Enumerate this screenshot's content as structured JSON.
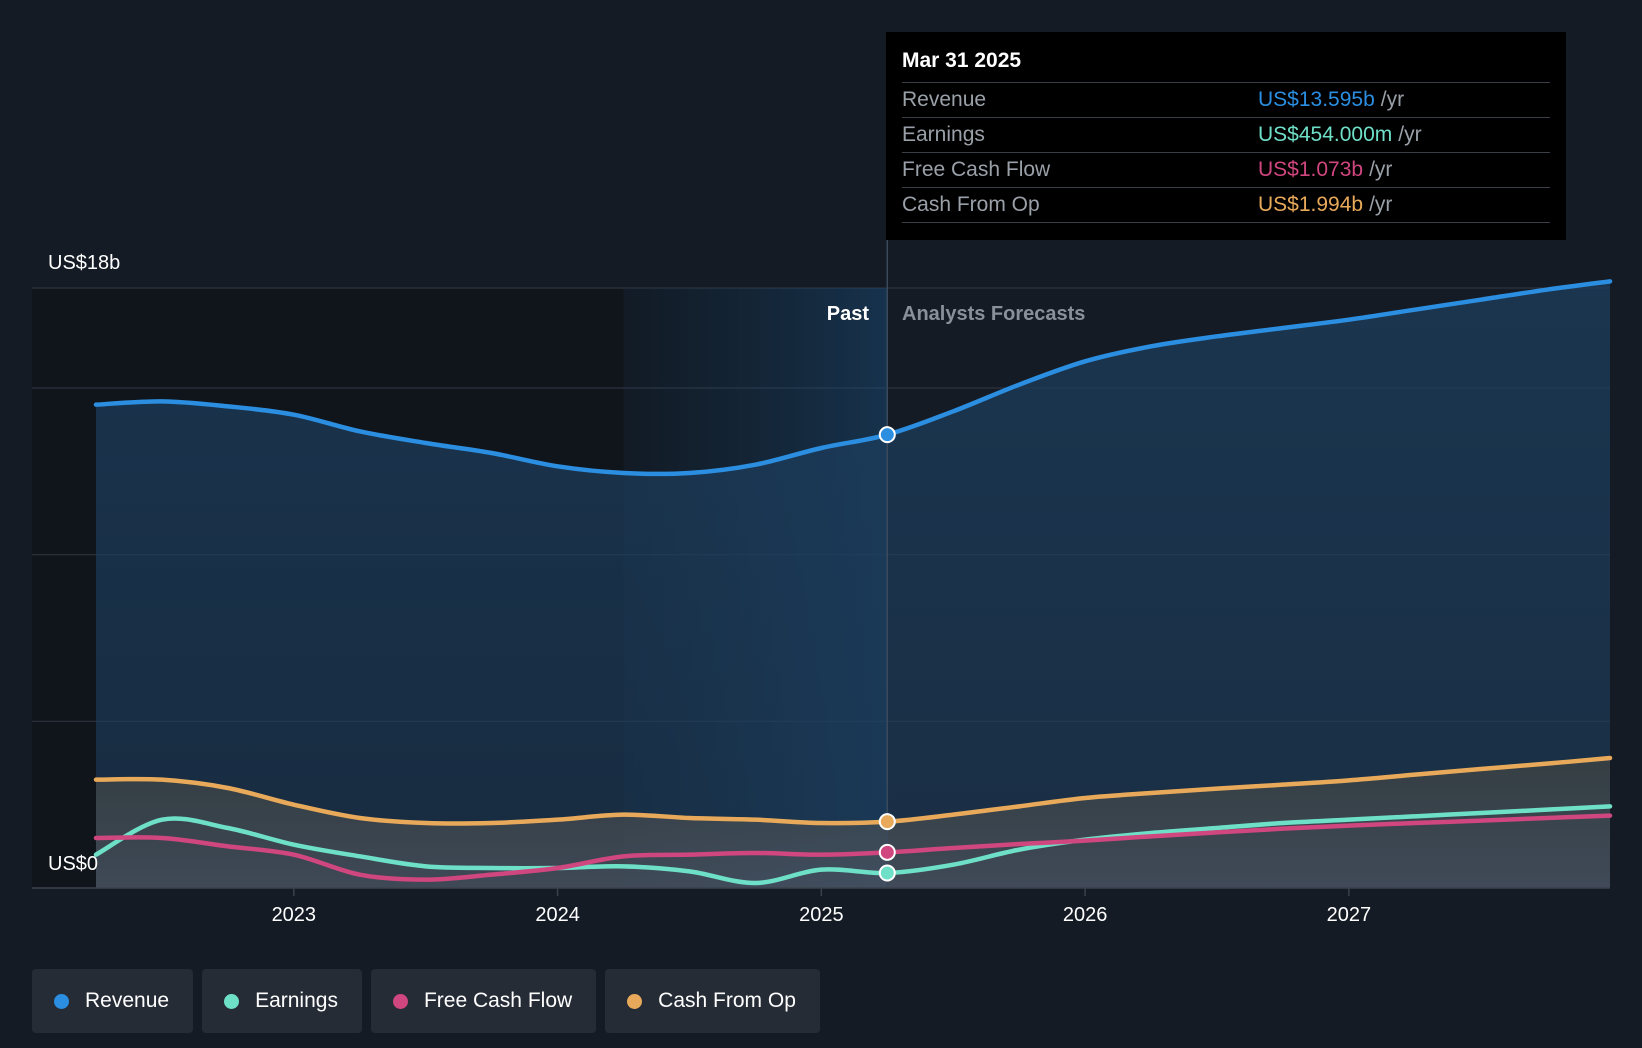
{
  "colors": {
    "revenue": "#2b8ee0",
    "earnings": "#6fe0c8",
    "free_cash_flow": "#d0467e",
    "cash_from_op": "#e8aa5a",
    "background": "#151b24"
  },
  "tooltip": {
    "date": "Mar 31 2025",
    "unit": "/yr",
    "rows": [
      {
        "label": "Revenue",
        "value": "US$13.595b"
      },
      {
        "label": "Earnings",
        "value": "US$454.000m"
      },
      {
        "label": "Free Cash Flow",
        "value": "US$1.073b"
      },
      {
        "label": "Cash From Op",
        "value": "US$1.994b"
      }
    ]
  },
  "labels": {
    "y_top": "US$18b",
    "y_bottom": "US$0",
    "past": "Past",
    "forecast": "Analysts Forecasts"
  },
  "legend": [
    {
      "label": "Revenue",
      "color": "#2b8ee0"
    },
    {
      "label": "Earnings",
      "color": "#6fe0c8"
    },
    {
      "label": "Free Cash Flow",
      "color": "#d0467e"
    },
    {
      "label": "Cash From Op",
      "color": "#e8aa5a"
    }
  ],
  "chart_data": {
    "type": "line",
    "ylim": [
      0,
      18
    ],
    "yunit": "US$ b",
    "x_ticks": [
      "2023",
      "2024",
      "2025",
      "2026",
      "2027"
    ],
    "xlim": [
      2022.2,
      2027.99
    ],
    "divider_x": 2025.25,
    "past_highlight_start": 2024.25,
    "series": [
      {
        "name": "Revenue",
        "points": [
          [
            2022.25,
            14.5
          ],
          [
            2022.5,
            14.6
          ],
          [
            2022.75,
            14.45
          ],
          [
            2023.0,
            14.2
          ],
          [
            2023.25,
            13.7
          ],
          [
            2023.5,
            13.35
          ],
          [
            2023.75,
            13.05
          ],
          [
            2024.0,
            12.65
          ],
          [
            2024.25,
            12.45
          ],
          [
            2024.5,
            12.45
          ],
          [
            2024.75,
            12.7
          ],
          [
            2025.0,
            13.2
          ],
          [
            2025.25,
            13.6
          ],
          [
            2025.5,
            14.3
          ],
          [
            2025.75,
            15.1
          ],
          [
            2026.0,
            15.8
          ],
          [
            2026.25,
            16.25
          ],
          [
            2026.5,
            16.55
          ],
          [
            2026.75,
            16.8
          ],
          [
            2027.0,
            17.05
          ],
          [
            2027.25,
            17.35
          ],
          [
            2027.5,
            17.65
          ],
          [
            2027.75,
            17.95
          ],
          [
            2027.99,
            18.2
          ]
        ]
      },
      {
        "name": "Earnings",
        "points": [
          [
            2022.25,
            1.0
          ],
          [
            2022.5,
            2.05
          ],
          [
            2022.75,
            1.8
          ],
          [
            2023.0,
            1.3
          ],
          [
            2023.25,
            0.95
          ],
          [
            2023.5,
            0.65
          ],
          [
            2023.75,
            0.6
          ],
          [
            2024.0,
            0.6
          ],
          [
            2024.25,
            0.65
          ],
          [
            2024.5,
            0.5
          ],
          [
            2024.75,
            0.15
          ],
          [
            2025.0,
            0.55
          ],
          [
            2025.25,
            0.45
          ],
          [
            2025.5,
            0.7
          ],
          [
            2025.75,
            1.15
          ],
          [
            2026.0,
            1.45
          ],
          [
            2026.25,
            1.65
          ],
          [
            2026.5,
            1.8
          ],
          [
            2026.75,
            1.95
          ],
          [
            2027.0,
            2.05
          ],
          [
            2027.25,
            2.15
          ],
          [
            2027.5,
            2.25
          ],
          [
            2027.75,
            2.35
          ],
          [
            2027.99,
            2.45
          ]
        ]
      },
      {
        "name": "Free Cash Flow",
        "points": [
          [
            2022.25,
            1.5
          ],
          [
            2022.5,
            1.5
          ],
          [
            2022.75,
            1.25
          ],
          [
            2023.0,
            1.0
          ],
          [
            2023.25,
            0.4
          ],
          [
            2023.5,
            0.25
          ],
          [
            2023.75,
            0.4
          ],
          [
            2024.0,
            0.6
          ],
          [
            2024.25,
            0.95
          ],
          [
            2024.5,
            1.0
          ],
          [
            2024.75,
            1.05
          ],
          [
            2025.0,
            1.0
          ],
          [
            2025.25,
            1.07
          ],
          [
            2025.5,
            1.2
          ],
          [
            2025.75,
            1.32
          ],
          [
            2026.0,
            1.42
          ],
          [
            2026.25,
            1.55
          ],
          [
            2026.5,
            1.67
          ],
          [
            2026.75,
            1.78
          ],
          [
            2027.0,
            1.87
          ],
          [
            2027.25,
            1.95
          ],
          [
            2027.5,
            2.02
          ],
          [
            2027.75,
            2.1
          ],
          [
            2027.99,
            2.17
          ]
        ]
      },
      {
        "name": "Cash From Op",
        "points": [
          [
            2022.25,
            3.25
          ],
          [
            2022.5,
            3.25
          ],
          [
            2022.75,
            3.0
          ],
          [
            2023.0,
            2.5
          ],
          [
            2023.25,
            2.1
          ],
          [
            2023.5,
            1.95
          ],
          [
            2023.75,
            1.95
          ],
          [
            2024.0,
            2.05
          ],
          [
            2024.25,
            2.2
          ],
          [
            2024.5,
            2.1
          ],
          [
            2024.75,
            2.05
          ],
          [
            2025.0,
            1.95
          ],
          [
            2025.25,
            1.99
          ],
          [
            2025.5,
            2.2
          ],
          [
            2025.75,
            2.45
          ],
          [
            2026.0,
            2.7
          ],
          [
            2026.25,
            2.85
          ],
          [
            2026.5,
            2.98
          ],
          [
            2026.75,
            3.1
          ],
          [
            2027.0,
            3.23
          ],
          [
            2027.25,
            3.4
          ],
          [
            2027.5,
            3.57
          ],
          [
            2027.75,
            3.73
          ],
          [
            2027.99,
            3.9
          ]
        ]
      }
    ]
  }
}
